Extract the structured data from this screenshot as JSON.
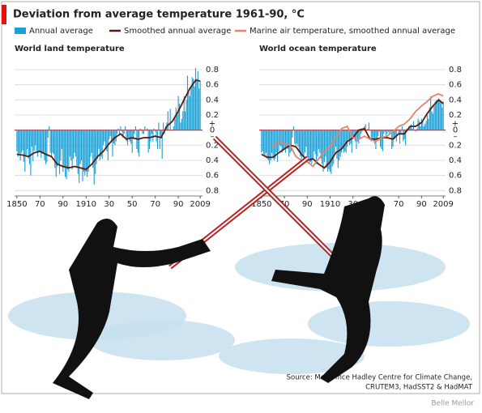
{
  "title": "Deviation from average temperature 1961-90, °C",
  "source": [
    "Source: Met Office Hadley Centre for Climate Change,",
    "CRUTEM3, HadSST2 & HadMAT"
  ],
  "credit": "Belle Mellor",
  "chart_data": [
    {
      "type": "bar",
      "title": "World land temperature",
      "x": [
        1850,
        1851,
        1852,
        1853,
        1854,
        1855,
        1856,
        1857,
        1858,
        1859,
        1860,
        1861,
        1862,
        1863,
        1864,
        1865,
        1866,
        1867,
        1868,
        1869,
        1870,
        1871,
        1872,
        1873,
        1874,
        1875,
        1876,
        1877,
        1878,
        1879,
        1880,
        1881,
        1882,
        1883,
        1884,
        1885,
        1886,
        1887,
        1888,
        1889,
        1890,
        1891,
        1892,
        1893,
        1894,
        1895,
        1896,
        1897,
        1898,
        1899,
        1900,
        1901,
        1902,
        1903,
        1904,
        1905,
        1906,
        1907,
        1908,
        1909,
        1910,
        1911,
        1912,
        1913,
        1914,
        1915,
        1916,
        1917,
        1918,
        1919,
        1920,
        1921,
        1922,
        1923,
        1924,
        1925,
        1926,
        1927,
        1928,
        1929,
        1930,
        1931,
        1932,
        1933,
        1934,
        1935,
        1936,
        1937,
        1938,
        1939,
        1940,
        1941,
        1942,
        1943,
        1944,
        1945,
        1946,
        1947,
        1948,
        1949,
        1950,
        1951,
        1952,
        1953,
        1954,
        1955,
        1956,
        1957,
        1958,
        1959,
        1960,
        1961,
        1962,
        1963,
        1964,
        1965,
        1966,
        1967,
        1968,
        1969,
        1970,
        1971,
        1972,
        1973,
        1974,
        1975,
        1976,
        1977,
        1978,
        1979,
        1980,
        1981,
        1982,
        1983,
        1984,
        1985,
        1986,
        1987,
        1988,
        1989,
        1990,
        1991,
        1992,
        1993,
        1994,
        1995,
        1996,
        1997,
        1998,
        1999,
        2000,
        2001,
        2002,
        2003,
        2004,
        2005,
        2006,
        2007,
        2008,
        2009
      ],
      "series": [
        {
          "name": "Annual average",
          "color": "#1ba1d8",
          "values": [
            -0.28,
            -0.35,
            -0.31,
            -0.4,
            -0.3,
            -0.27,
            -0.42,
            -0.55,
            -0.33,
            -0.25,
            -0.38,
            -0.45,
            -0.6,
            -0.22,
            -0.41,
            -0.27,
            -0.2,
            -0.28,
            -0.35,
            -0.3,
            -0.29,
            -0.37,
            -0.31,
            -0.3,
            -0.4,
            -0.45,
            -0.42,
            -0.1,
            0.05,
            -0.3,
            -0.35,
            -0.3,
            -0.32,
            -0.5,
            -0.62,
            -0.48,
            -0.45,
            -0.58,
            -0.4,
            -0.25,
            -0.55,
            -0.5,
            -0.62,
            -0.65,
            -0.52,
            -0.55,
            -0.35,
            -0.4,
            -0.52,
            -0.38,
            -0.3,
            -0.35,
            -0.5,
            -0.58,
            -0.7,
            -0.45,
            -0.4,
            -0.68,
            -0.55,
            -0.6,
            -0.55,
            -0.62,
            -0.55,
            -0.48,
            -0.35,
            -0.3,
            -0.5,
            -0.72,
            -0.58,
            -0.45,
            -0.38,
            -0.25,
            -0.4,
            -0.35,
            -0.38,
            -0.2,
            -0.15,
            -0.25,
            -0.28,
            -0.4,
            -0.12,
            -0.08,
            -0.15,
            -0.35,
            -0.18,
            -0.2,
            -0.15,
            -0.05,
            0.02,
            -0.05,
            0.05,
            -0.02,
            -0.1,
            -0.05,
            0.05,
            -0.15,
            -0.2,
            -0.1,
            -0.15,
            -0.18,
            -0.3,
            -0.12,
            -0.05,
            0.05,
            -0.25,
            -0.3,
            -0.35,
            0.02,
            0.0,
            -0.05,
            -0.05,
            0.05,
            0.0,
            0.02,
            -0.3,
            -0.25,
            -0.15,
            -0.05,
            -0.15,
            0.02,
            -0.02,
            -0.15,
            -0.25,
            0.1,
            -0.25,
            -0.1,
            -0.38,
            0.1,
            -0.05,
            0.05,
            0.1,
            0.25,
            0.0,
            0.28,
            0.0,
            0.0,
            0.05,
            0.15,
            0.3,
            0.2,
            0.45,
            0.35,
            0.1,
            0.15,
            0.25,
            0.45,
            0.25,
            0.4,
            0.72,
            0.5,
            0.45,
            0.58,
            0.7,
            0.68,
            0.58,
            0.82,
            0.68,
            0.78,
            0.55,
            0.65
          ]
        },
        {
          "name": "Smoothed annual average",
          "color": "#5a1a0c",
          "type": "line",
          "x": [
            1850,
            1855,
            1860,
            1865,
            1870,
            1875,
            1880,
            1885,
            1890,
            1895,
            1900,
            1905,
            1910,
            1915,
            1920,
            1925,
            1930,
            1935,
            1940,
            1945,
            1950,
            1955,
            1960,
            1965,
            1970,
            1975,
            1980,
            1985,
            1990,
            1995,
            2000,
            2005,
            2009
          ],
          "values": [
            -0.32,
            -0.33,
            -0.35,
            -0.3,
            -0.28,
            -0.32,
            -0.35,
            -0.45,
            -0.48,
            -0.5,
            -0.48,
            -0.5,
            -0.52,
            -0.45,
            -0.35,
            -0.28,
            -0.18,
            -0.1,
            -0.05,
            -0.12,
            -0.1,
            -0.12,
            -0.1,
            -0.1,
            -0.08,
            -0.1,
            0.05,
            0.12,
            0.25,
            0.4,
            0.55,
            0.66,
            0.65
          ]
        }
      ],
      "xlim": [
        1848,
        2011
      ],
      "xticks": [
        1850,
        {
          "value": 1870,
          "label": "70"
        },
        {
          "value": 1890,
          "label": "90"
        },
        1910,
        {
          "value": 1930,
          "label": "30"
        },
        {
          "value": 1950,
          "label": "50"
        },
        {
          "value": 1970,
          "label": "70"
        },
        {
          "value": 1990,
          "label": "90"
        },
        2009
      ],
      "ylim": [
        -0.85,
        0.95
      ],
      "yticks": [
        {
          "value": -0.8,
          "label": "0.8"
        },
        {
          "value": -0.6,
          "label": "0.6"
        },
        {
          "value": -0.4,
          "label": "0.4"
        },
        {
          "value": -0.2,
          "label": "0.2"
        },
        0,
        0.2,
        0.4,
        0.6,
        0.8
      ],
      "zero_signs": [
        "+",
        "–"
      ],
      "grid": true
    },
    {
      "type": "bar",
      "title": "World ocean temperature",
      "x": [
        1850,
        1851,
        1852,
        1853,
        1854,
        1855,
        1856,
        1857,
        1858,
        1859,
        1860,
        1861,
        1862,
        1863,
        1864,
        1865,
        1866,
        1867,
        1868,
        1869,
        1870,
        1871,
        1872,
        1873,
        1874,
        1875,
        1876,
        1877,
        1878,
        1879,
        1880,
        1881,
        1882,
        1883,
        1884,
        1885,
        1886,
        1887,
        1888,
        1889,
        1890,
        1891,
        1892,
        1893,
        1894,
        1895,
        1896,
        1897,
        1898,
        1899,
        1900,
        1901,
        1902,
        1903,
        1904,
        1905,
        1906,
        1907,
        1908,
        1909,
        1910,
        1911,
        1912,
        1913,
        1914,
        1915,
        1916,
        1917,
        1918,
        1919,
        1920,
        1921,
        1922,
        1923,
        1924,
        1925,
        1926,
        1927,
        1928,
        1929,
        1930,
        1931,
        1932,
        1933,
        1934,
        1935,
        1936,
        1937,
        1938,
        1939,
        1940,
        1941,
        1942,
        1943,
        1944,
        1945,
        1946,
        1947,
        1948,
        1949,
        1950,
        1951,
        1952,
        1953,
        1954,
        1955,
        1956,
        1957,
        1958,
        1959,
        1960,
        1961,
        1962,
        1963,
        1964,
        1965,
        1966,
        1967,
        1968,
        1969,
        1970,
        1971,
        1972,
        1973,
        1974,
        1975,
        1976,
        1977,
        1978,
        1979,
        1980,
        1981,
        1982,
        1983,
        1984,
        1985,
        1986,
        1987,
        1988,
        1989,
        1990,
        1991,
        1992,
        1993,
        1994,
        1995,
        1996,
        1997,
        1998,
        1999,
        2000,
        2001,
        2002,
        2003,
        2004,
        2005,
        2006,
        2007,
        2008,
        2009
      ],
      "series": [
        {
          "color": "#1ba1d8",
          "values": [
            -0.3,
            -0.28,
            -0.32,
            -0.35,
            -0.3,
            -0.38,
            -0.4,
            -0.45,
            -0.4,
            -0.3,
            -0.35,
            -0.4,
            -0.38,
            -0.3,
            -0.42,
            -0.28,
            -0.2,
            -0.22,
            -0.3,
            -0.25,
            -0.25,
            -0.3,
            -0.22,
            -0.25,
            -0.35,
            -0.3,
            -0.28,
            -0.1,
            0.05,
            -0.18,
            -0.2,
            -0.18,
            -0.22,
            -0.3,
            -0.35,
            -0.38,
            -0.32,
            -0.4,
            -0.3,
            -0.22,
            -0.4,
            -0.38,
            -0.45,
            -0.42,
            -0.45,
            -0.38,
            -0.28,
            -0.32,
            -0.45,
            -0.35,
            -0.25,
            -0.3,
            -0.38,
            -0.45,
            -0.55,
            -0.42,
            -0.35,
            -0.5,
            -0.55,
            -0.52,
            -0.55,
            -0.58,
            -0.48,
            -0.45,
            -0.3,
            -0.22,
            -0.38,
            -0.5,
            -0.4,
            -0.35,
            -0.3,
            -0.25,
            -0.3,
            -0.28,
            -0.3,
            -0.22,
            -0.12,
            -0.2,
            -0.18,
            -0.3,
            -0.12,
            -0.1,
            -0.15,
            -0.25,
            -0.15,
            -0.18,
            -0.12,
            -0.05,
            -0.02,
            0.0,
            0.05,
            0.08,
            0.0,
            0.02,
            0.1,
            0.0,
            -0.15,
            -0.12,
            -0.15,
            -0.18,
            -0.25,
            -0.12,
            -0.08,
            -0.02,
            -0.22,
            -0.25,
            -0.28,
            -0.05,
            -0.02,
            -0.08,
            -0.05,
            -0.02,
            -0.05,
            -0.02,
            -0.25,
            -0.22,
            -0.12,
            -0.1,
            -0.15,
            0.0,
            -0.05,
            -0.18,
            -0.05,
            0.05,
            -0.15,
            -0.12,
            -0.2,
            0.02,
            0.0,
            0.05,
            0.05,
            0.08,
            0.02,
            0.12,
            0.0,
            -0.02,
            0.02,
            0.15,
            0.12,
            0.05,
            0.15,
            0.12,
            0.05,
            0.08,
            0.12,
            0.2,
            0.15,
            0.3,
            0.45,
            0.25,
            0.22,
            0.32,
            0.38,
            0.4,
            0.38,
            0.42,
            0.4,
            0.38,
            0.3,
            0.38
          ]
        },
        {
          "color": "#5a1a0c",
          "type": "line",
          "x": [
            1850,
            1855,
            1860,
            1865,
            1870,
            1875,
            1880,
            1885,
            1890,
            1895,
            1900,
            1905,
            1910,
            1915,
            1920,
            1925,
            1930,
            1935,
            1940,
            1945,
            1950,
            1955,
            1960,
            1965,
            1970,
            1975,
            1980,
            1985,
            1990,
            1995,
            2000,
            2005,
            2009
          ],
          "values": [
            -0.32,
            -0.36,
            -0.36,
            -0.3,
            -0.25,
            -0.2,
            -0.22,
            -0.32,
            -0.4,
            -0.38,
            -0.45,
            -0.5,
            -0.42,
            -0.3,
            -0.25,
            -0.15,
            -0.1,
            0.0,
            0.02,
            -0.12,
            -0.12,
            -0.1,
            -0.1,
            -0.12,
            -0.05,
            -0.05,
            0.05,
            0.05,
            0.1,
            0.22,
            0.32,
            0.4,
            0.35
          ]
        },
        {
          "name": "Marine air temperature, smoothed annual average",
          "color": "#e8826a",
          "type": "line",
          "x": [
            1860,
            1865,
            1870,
            1875,
            1880,
            1885,
            1890,
            1895,
            1900,
            1905,
            1910,
            1915,
            1920,
            1925,
            1930,
            1935,
            1940,
            1945,
            1950,
            1955,
            1960,
            1965,
            1970,
            1975,
            1980,
            1985,
            1990,
            1995,
            2000,
            2005,
            2009
          ],
          "values": [
            -0.22,
            -0.15,
            -0.18,
            -0.2,
            -0.35,
            -0.4,
            -0.42,
            -0.48,
            -0.38,
            -0.28,
            -0.22,
            -0.1,
            0.02,
            0.05,
            -0.1,
            -0.12,
            -0.08,
            -0.12,
            -0.15,
            -0.1,
            -0.08,
            -0.02,
            0.05,
            0.08,
            0.15,
            0.25,
            0.32,
            0.38,
            0.45,
            0.48,
            0.45
          ]
        }
      ],
      "xlim": [
        1848,
        2011
      ],
      "xticks": [
        1850,
        {
          "value": 1870,
          "label": "70"
        },
        {
          "value": 1890,
          "label": "90"
        },
        1910,
        {
          "value": 1930,
          "label": "30"
        },
        {
          "value": 1950,
          "label": "50"
        },
        {
          "value": 1970,
          "label": "70"
        },
        {
          "value": 1990,
          "label": "90"
        },
        2009
      ],
      "ylim": [
        -0.85,
        0.95
      ],
      "yticks": [
        {
          "value": -0.8,
          "label": "0.8"
        },
        {
          "value": -0.6,
          "label": "0.6"
        },
        {
          "value": -0.4,
          "label": "0.4"
        },
        {
          "value": -0.2,
          "label": "0.2"
        },
        0,
        0.2,
        0.4,
        0.6,
        0.8
      ],
      "zero_signs": [
        "+",
        "–"
      ],
      "grid": true
    }
  ]
}
